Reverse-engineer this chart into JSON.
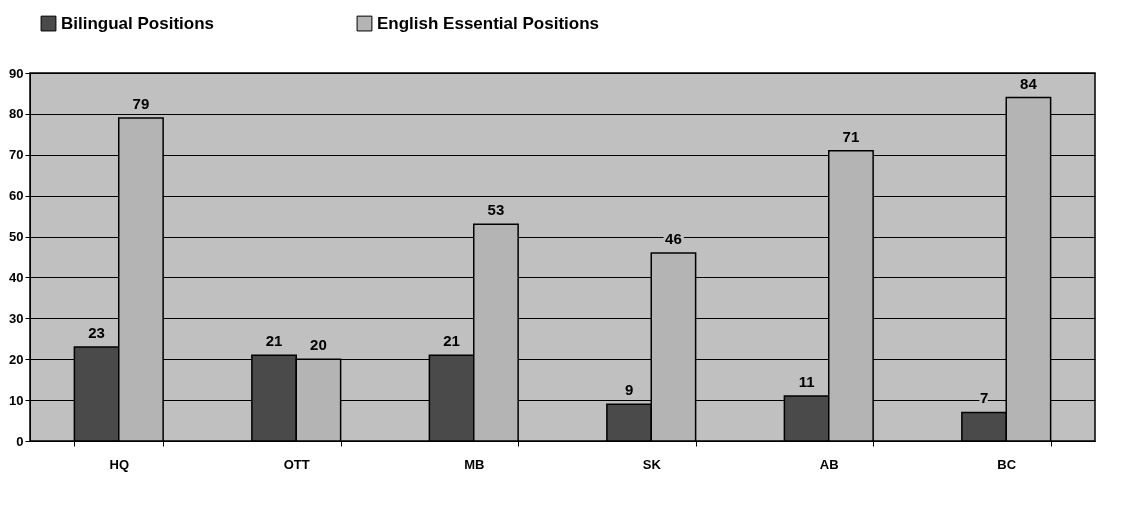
{
  "chart_data": {
    "type": "bar",
    "categories": [
      "HQ",
      "OTT",
      "MB",
      "SK",
      "AB",
      "BC"
    ],
    "series": [
      {
        "name": "Bilingual Positions",
        "color": "#4a4a4a",
        "values": [
          23,
          21,
          21,
          9,
          11,
          7
        ]
      },
      {
        "name": "English Essential Positions",
        "color": "#b4b4b4",
        "values": [
          79,
          20,
          53,
          46,
          71,
          84
        ]
      }
    ],
    "ylim": [
      0,
      90
    ],
    "yticks": [
      0,
      10,
      20,
      30,
      40,
      50,
      60,
      70,
      80,
      90
    ],
    "grid": "y",
    "legend": "top",
    "data_labels": true
  }
}
